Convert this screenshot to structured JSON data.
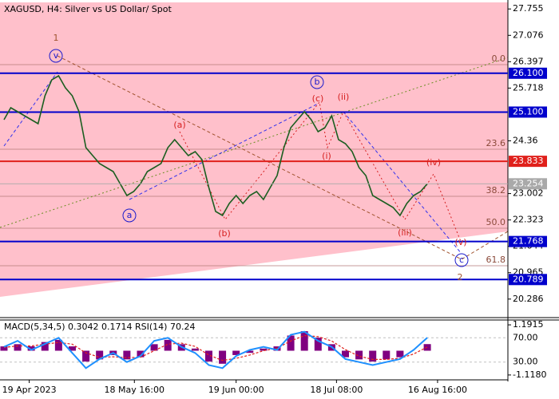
{
  "chart_data": [
    {
      "type": "line",
      "title": "XAGUSD, H4:  Silver vs US Dollar/ Spot",
      "x": [
        0,
        1,
        2,
        3,
        4,
        5,
        6,
        7,
        8,
        9,
        10,
        11,
        12,
        13,
        14,
        15,
        16,
        17,
        18,
        19,
        20,
        21,
        22,
        23,
        24,
        25,
        26,
        27,
        28,
        29,
        30,
        31,
        32,
        33,
        34,
        35,
        36,
        37,
        38,
        39,
        40,
        41,
        42,
        43,
        44,
        45,
        46,
        47,
        48,
        49,
        50,
        51,
        52,
        53,
        54,
        55,
        56,
        57,
        58,
        59,
        60,
        61,
        62
      ],
      "xlim": [
        -0.58,
        73.8
      ],
      "xticks": [
        {
          "value": 3.7,
          "label": "19 Apr 2023"
        },
        {
          "value": 19.1,
          "label": "18 May 16:00"
        },
        {
          "value": 34.0,
          "label": "19 Jun 00:00"
        },
        {
          "value": 48.7,
          "label": "18 Jul 08:00"
        },
        {
          "value": 63.5,
          "label": "16 Aug 16:00"
        }
      ],
      "series": [
        {
          "color": "#1b5e20",
          "values": [
            24.904,
            25.212,
            25.109,
            25.007,
            24.904,
            24.801,
            25.52,
            25.931,
            26.034,
            25.726,
            25.52,
            25.109,
            24.185,
            23.98,
            23.774,
            23.671,
            23.569,
            23.261,
            22.952,
            23.055,
            23.261,
            23.569,
            23.671,
            23.774,
            24.185,
            24.39,
            24.185,
            23.98,
            24.082,
            23.877,
            23.158,
            22.541,
            22.439,
            22.747,
            22.952,
            22.747,
            22.952,
            23.055,
            22.85,
            23.158,
            23.466,
            24.185,
            24.699,
            24.904,
            25.109,
            24.904,
            24.596,
            24.699,
            25.007,
            24.39,
            24.288,
            24.082,
            23.671,
            23.466,
            22.952,
            22.85,
            22.747,
            22.644,
            22.439,
            22.747,
            22.952,
            23.055,
            23.254
          ]
        }
      ],
      "ylim": [
        19.809,
        27.924
      ],
      "yticks": [
        27.755,
        27.076,
        26.397,
        25.718,
        24.36,
        23.002,
        22.323,
        21.644,
        20.965,
        20.286
      ],
      "levels": [
        {
          "value": 26.1,
          "label": "26.100",
          "color": "#0000cc"
        },
        {
          "value": 25.1,
          "label": "25.100",
          "color": "#0000cc"
        },
        {
          "value": 23.833,
          "label": "23.833",
          "color": "#e0201b"
        },
        {
          "value": 21.768,
          "label": "21.768",
          "color": "#0000cc"
        },
        {
          "value": 20.789,
          "label": "20.789",
          "color": "#0000cc"
        }
      ],
      "current_price": {
        "value": 23.254,
        "label": "23.254",
        "color": "#a9a9a9"
      },
      "fib": [
        {
          "label": "0.0",
          "price": 26.322
        },
        {
          "label": "23.6",
          "price": 24.144
        },
        {
          "label": "38.2",
          "price": 22.932
        },
        {
          "label": "50.0",
          "price": 22.11
        },
        {
          "label": "61.8",
          "price": 21.145
        }
      ],
      "annotations": [
        {
          "text": "1",
          "color": "#a0522d"
        },
        {
          "text": "v",
          "color": "#1a1acc",
          "circled": true
        },
        {
          "text": "(a)",
          "color": "#d62020"
        },
        {
          "text": "b",
          "color": "#1a1acc",
          "circled": true
        },
        {
          "text": "(c)",
          "color": "#d62020"
        },
        {
          "text": "(ii)",
          "color": "#d62020"
        },
        {
          "text": "(i)",
          "color": "#d62020"
        },
        {
          "text": "a",
          "color": "#1a1acc",
          "circled": true
        },
        {
          "text": "(b)",
          "color": "#d62020"
        },
        {
          "text": "(iv)",
          "color": "#d62020"
        },
        {
          "text": "(iii)",
          "color": "#d62020"
        },
        {
          "text": "(v)",
          "color": "#d62020"
        },
        {
          "text": "c",
          "color": "#1a1acc",
          "circled": true
        },
        {
          "text": "2",
          "color": "#a0522d"
        }
      ]
    },
    {
      "type": "macd",
      "title": "MACD(5,34,5) 0.3042 0.1714 RSI(14) 70.24",
      "x": [
        0,
        2,
        4,
        6,
        8,
        10,
        12,
        14,
        16,
        18,
        20,
        22,
        24,
        26,
        28,
        30,
        32,
        34,
        36,
        38,
        40,
        42,
        44,
        46,
        48,
        50,
        52,
        54,
        56,
        58,
        60,
        62
      ],
      "xlim": [
        -0.58,
        73.8
      ],
      "series": [
        {
          "color": "#800080",
          "values": [
            0.2,
            0.3,
            0.2,
            0.4,
            0.5,
            0.2,
            -0.5,
            -0.4,
            -0.2,
            -0.4,
            -0.3,
            0.3,
            0.5,
            0.3,
            0.1,
            -0.5,
            -0.6,
            -0.2,
            -0.1,
            0.1,
            0.2,
            0.7,
            0.9,
            0.6,
            0.3,
            -0.3,
            -0.4,
            -0.5,
            -0.4,
            -0.3,
            0.0,
            0.3042
          ]
        },
        {
          "color": "#e0201b",
          "values": [
            0.15,
            0.22,
            0.22,
            0.3,
            0.38,
            0.3,
            -0.1,
            -0.3,
            -0.28,
            -0.32,
            -0.3,
            0.0,
            0.3,
            0.35,
            0.2,
            -0.2,
            -0.45,
            -0.35,
            -0.2,
            0.0,
            0.12,
            0.45,
            0.7,
            0.65,
            0.45,
            0.05,
            -0.25,
            -0.4,
            -0.4,
            -0.35,
            -0.15,
            0.1714
          ]
        },
        {
          "color": "#1e90ff",
          "axis": "y2",
          "values": [
            55,
            65,
            50,
            60,
            70,
            45,
            20,
            35,
            45,
            30,
            40,
            65,
            70,
            55,
            45,
            25,
            20,
            40,
            50,
            55,
            50,
            75,
            80,
            65,
            55,
            35,
            30,
            25,
            30,
            35,
            50,
            70.24
          ]
        }
      ],
      "ylim": [
        -1.342,
        1.415
      ],
      "yticks": [
        1.1915,
        {
          "value": -1.118,
          "label": "-1.1180"
        }
      ],
      "y2lim": [
        0.7,
        99.3
      ],
      "y2ticks": [
        {
          "value": 70,
          "label": "70.00"
        },
        {
          "value": 30,
          "label": "30.00"
        }
      ]
    }
  ]
}
